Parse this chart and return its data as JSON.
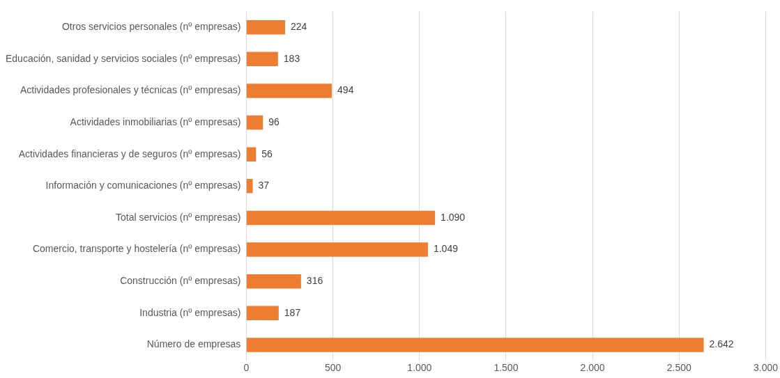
{
  "chart_data": {
    "type": "bar",
    "orientation": "horizontal",
    "categories": [
      "Otros servicios personales (nº empresas)",
      "Educación, sanidad y servicios sociales (nº empresas)",
      "Actividades profesionales y técnicas (nº empresas)",
      "Actividades inmobiliarias (nº empresas)",
      "Actividades financieras y de seguros (nº empresas)",
      "Información y comunicaciones (nº empresas)",
      "Total servicios (nº empresas)",
      "Comercio, transporte y hostelería (nº empresas)",
      "Construcción (nº empresas)",
      "Industria (nº empresas)",
      "Número de empresas"
    ],
    "values": [
      224,
      183,
      494,
      96,
      56,
      37,
      1090,
      1049,
      316,
      187,
      2642
    ],
    "value_labels": [
      "224",
      "183",
      "494",
      "96",
      "56",
      "37",
      "1.090",
      "1.049",
      "316",
      "187",
      "2.642"
    ],
    "color": "#ed7d31",
    "xlim": [
      0,
      3000
    ],
    "xticks": [
      0,
      500,
      {
        "value": 1000,
        "label": "1.000"
      },
      {
        "value": 1500,
        "label": "1.500"
      },
      {
        "value": 2000,
        "label": "2.000"
      },
      {
        "value": 2500,
        "label": "2.500"
      },
      {
        "value": 3000,
        "label": "3.000"
      }
    ],
    "grid": "x",
    "legend": false
  }
}
